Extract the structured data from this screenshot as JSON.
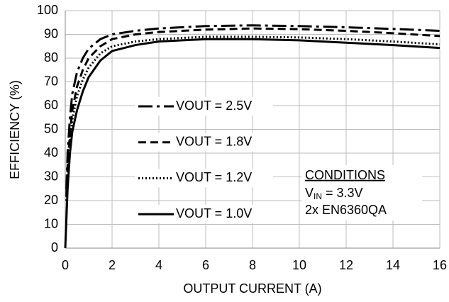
{
  "chart_data": {
    "type": "line",
    "xlabel": "OUTPUT CURRENT (A)",
    "ylabel": "EFFICIENCY (%)",
    "xlim": [
      0,
      16
    ],
    "xticks": [
      0,
      2,
      4,
      6,
      8,
      10,
      12,
      14,
      16
    ],
    "ylim": [
      0,
      100
    ],
    "yticks": [
      0,
      10,
      20,
      30,
      40,
      50,
      60,
      70,
      80,
      90,
      100
    ],
    "grid": true,
    "series": [
      {
        "name": "VOUT = 2.5V",
        "color": "#000000",
        "line_style": "long-dash",
        "x": [
          0.05,
          0.1,
          0.2,
          0.3,
          0.5,
          0.75,
          1,
          1.5,
          2,
          3,
          4,
          6,
          8,
          10,
          12,
          14,
          16
        ],
        "values": [
          25,
          40,
          55,
          65,
          74,
          80,
          84,
          88,
          90,
          91.5,
          92.5,
          93.5,
          93.8,
          93.5,
          93,
          92.3,
          91.5
        ]
      },
      {
        "name": "VOUT = 1.8V",
        "color": "#000000",
        "line_style": "dash",
        "x": [
          0.05,
          0.1,
          0.2,
          0.3,
          0.5,
          0.75,
          1,
          1.5,
          2,
          3,
          4,
          6,
          8,
          10,
          12,
          14,
          16
        ],
        "values": [
          22,
          35,
          48,
          58,
          68,
          75,
          80,
          85,
          88,
          90,
          91,
          92,
          92.5,
          92.2,
          91.5,
          90.5,
          89.3
        ]
      },
      {
        "name": "VOUT = 1.2V",
        "color": "#000000",
        "line_style": "dot",
        "x": [
          0.05,
          0.1,
          0.2,
          0.3,
          0.5,
          0.75,
          1,
          1.5,
          2,
          3,
          4,
          6,
          8,
          10,
          12,
          14,
          16
        ],
        "values": [
          20,
          32,
          45,
          54,
          64,
          71,
          76,
          82,
          85,
          87,
          88,
          89,
          89,
          88.7,
          88,
          87,
          85.8
        ]
      },
      {
        "name": "VOUT = 1.0V",
        "color": "#000000",
        "line_style": "solid",
        "x": [
          0,
          0.1,
          0.2,
          0.3,
          0.5,
          0.75,
          1,
          1.5,
          2,
          3,
          4,
          6,
          8,
          10,
          12,
          14,
          16
        ],
        "values": [
          0,
          25,
          40,
          49,
          58,
          66,
          72,
          79,
          83,
          85.5,
          87,
          88,
          88,
          87.5,
          86.5,
          85.5,
          84.3
        ]
      }
    ],
    "annotation": {
      "title": "CONDITIONS",
      "vin_symbol": "V",
      "vin_subscript": "IN",
      "vin_value": " = 3.3V",
      "device": "2x EN6360QA"
    }
  }
}
